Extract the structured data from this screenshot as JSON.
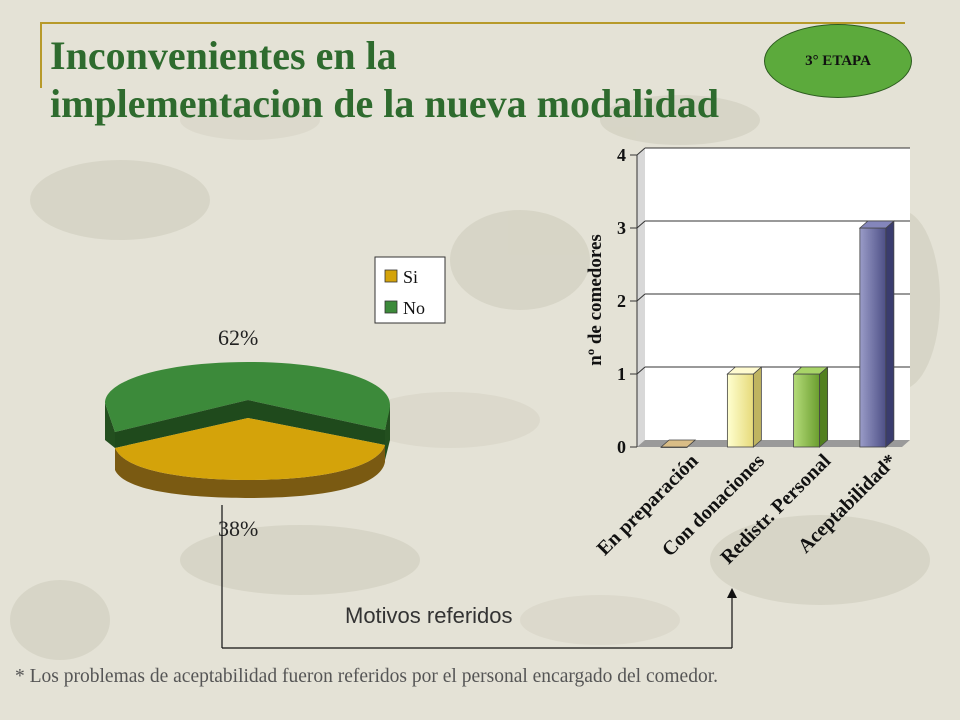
{
  "header": {
    "title_line1": "Inconvenientes en la",
    "title_line2": "implementacion de la nueva modalidad",
    "badge": "3° ETAPA"
  },
  "colors": {
    "title": "#2e6b2e",
    "badge": "#5caa3c",
    "pie_si": "#d4a30a",
    "pie_no": "#3c8a3a",
    "bar_en_preparacion": "#cfae72",
    "bar_con_donaciones": "#fff6a8",
    "bar_redistr_personal": "#8ec24a",
    "bar_aceptabilidad": "#6e6fa6"
  },
  "chart_data": [
    {
      "type": "pie",
      "labels": [
        "Si",
        "No"
      ],
      "values": [
        38,
        62
      ],
      "data_labels": [
        "38%",
        "62%"
      ],
      "legend": [
        "Si",
        "No"
      ],
      "legend_position": "top-right"
    },
    {
      "type": "bar",
      "categories": [
        "En preparación",
        "Con donaciones",
        "Redistr. Personal",
        "Aceptabilidad*"
      ],
      "values": [
        0,
        1,
        1,
        3
      ],
      "ylabel": "nº de comedores",
      "ylim": [
        0,
        4
      ],
      "yticks": [
        "0",
        "1",
        "2",
        "3",
        "4"
      ],
      "grid": true
    }
  ],
  "annotations": {
    "axis_caption": "Motivos referidos",
    "footnote": "* Los problemas de aceptabilidad fueron referidos por el personal encargado del comedor."
  }
}
